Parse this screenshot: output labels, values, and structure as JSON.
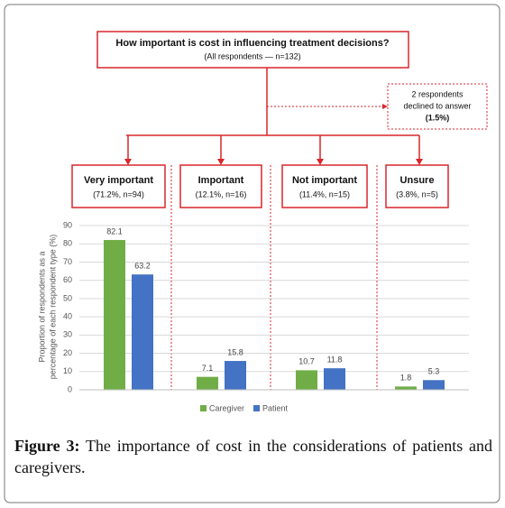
{
  "header": {
    "title": "How important is cost in influencing treatment decisions?",
    "subtitle": "(All respondents — n=132)"
  },
  "declined": {
    "lines": [
      "2 respondents",
      "declined to answer",
      "(1.5%)"
    ]
  },
  "chart_data": {
    "type": "bar",
    "categories": [
      "Very important",
      "Important",
      "Not important",
      "Unsure"
    ],
    "category_notes": [
      "(71.2%, n=94)",
      "(12.1%, n=16)",
      "(11.4%, n=15)",
      "(3.8%, n=5)"
    ],
    "ylabel": [
      "Proportion of respondents as a",
      "percentage of each respondent type (%)"
    ],
    "series": [
      {
        "name": "Caregiver",
        "color": "#70ad47",
        "values": [
          82.1,
          7.1,
          10.7,
          1.8
        ]
      },
      {
        "name": "Patient",
        "color": "#4472c4",
        "values": [
          63.2,
          15.8,
          11.8,
          5.3
        ]
      }
    ],
    "ylim": [
      0,
      90
    ],
    "yticks": [
      0,
      10,
      20,
      30,
      40,
      50,
      60,
      70,
      80,
      90
    ],
    "grid": true,
    "legend": "bottom"
  },
  "caption": {
    "label": "Figure 3:",
    "text": "The importance of cost in the considerations of patients and caregivers."
  }
}
